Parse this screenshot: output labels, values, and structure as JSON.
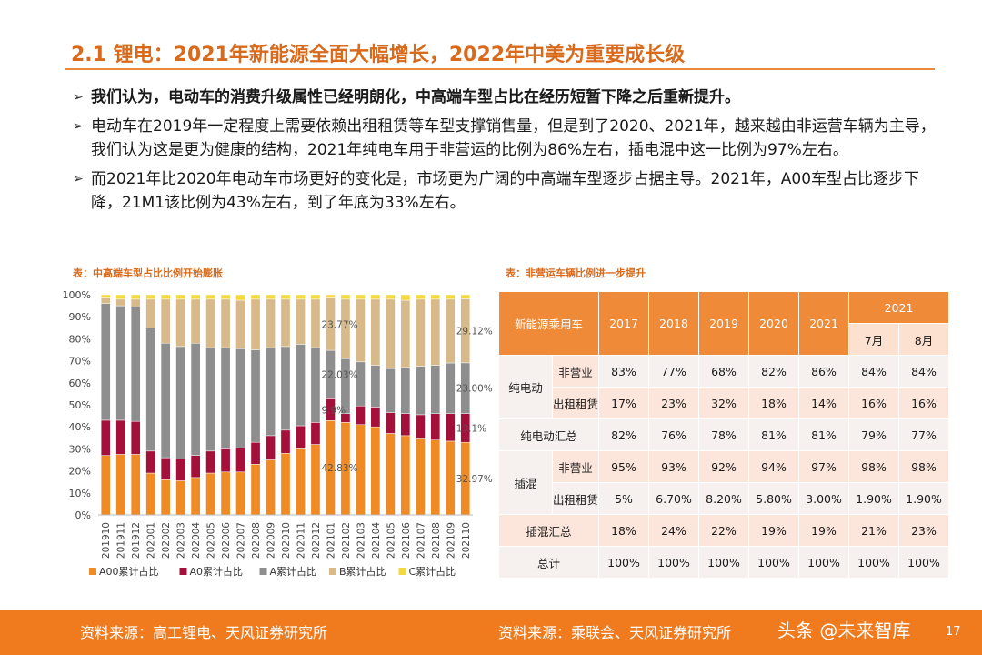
{
  "title": "2.1 锂电：2021年新能源全面大幅增长，2022年中美为重要成长级",
  "bullets": [
    "我们认为，电动车的消费升级属性已经明朗化，中高端车型占比在经历短暂下降之后重新提升。",
    "电动车在2019年一定程度上需要依赖出租租赁等车型支撑销售量，但是到了2020、2021年，越来越由非运营车辆为主导，我们认为这是更为健康的结构，2021年纯电车用于非营运的比例为86%左右，插电混中这一比例为97%左右。",
    "而2021年比2020年电动车市场更好的变化是，市场更为广阔的中高端车型逐步占据主导。2021年，A00车型占比逐步下降，21M1该比例为43%左右，到了年底为33%左右。"
  ],
  "bullet_marker": "➢",
  "chart_caption": "表：中高端车型占比比例开始膨胀",
  "table_caption": "表：非营运车辆比例进一步提升",
  "chart_data": {
    "type": "bar",
    "stacked": true,
    "categories": [
      "201910",
      "201911",
      "201912",
      "202001",
      "202002",
      "202003",
      "202004",
      "202005",
      "202006",
      "202007",
      "202008",
      "202009",
      "202010",
      "202011",
      "202012",
      "202101",
      "202102",
      "202103",
      "202104",
      "202105",
      "202106",
      "202107",
      "202108",
      "202109",
      "202110"
    ],
    "series": [
      {
        "name": "A00累计占比",
        "color": "#f08a24",
        "values": [
          27,
          27.5,
          27.5,
          19,
          16,
          15.5,
          17,
          19,
          19.5,
          19.5,
          23,
          25,
          28,
          30,
          32,
          42.83,
          42,
          41,
          40,
          37,
          36,
          34.5,
          34,
          33.5,
          32.97
        ]
      },
      {
        "name": "A0累计占比",
        "color": "#a5103a",
        "values": [
          16,
          15.5,
          15,
          10,
          10,
          10,
          10,
          10,
          10.5,
          11,
          10,
          11,
          10.5,
          10.5,
          10,
          9.9,
          4,
          8.5,
          9,
          9.5,
          10,
          11,
          12,
          12.5,
          13.1
        ]
      },
      {
        "name": "A累计占比",
        "color": "#8e8e8e",
        "values": [
          53,
          52,
          52,
          56,
          52,
          51,
          51,
          47,
          46,
          45,
          42,
          40,
          38,
          37,
          34,
          22.03,
          25,
          20,
          19,
          20,
          21,
          22,
          22,
          23,
          23.0
        ]
      },
      {
        "name": "B累计占比",
        "color": "#d8b98a",
        "values": [
          2.5,
          3,
          3.5,
          13,
          20,
          21.5,
          20,
          22,
          22,
          22,
          23,
          22,
          21.5,
          20.5,
          22,
          23.77,
          27,
          28.5,
          30,
          31.5,
          30.5,
          30.5,
          30,
          29,
          29.12
        ]
      },
      {
        "name": "C累计占比",
        "color": "#f4d93c",
        "values": [
          1.5,
          2,
          2,
          2,
          2,
          2,
          2,
          2,
          2,
          2.5,
          2,
          2,
          2,
          2,
          2,
          1.47,
          2,
          2,
          2,
          2,
          2.5,
          2,
          2,
          2,
          1.81
        ]
      }
    ],
    "ylim": [
      0,
      100
    ],
    "yticks": [
      "0%",
      "10%",
      "20%",
      "30%",
      "40%",
      "50%",
      "60%",
      "70%",
      "80%",
      "90%",
      "100%"
    ],
    "annotations": [
      {
        "text": "23.77%",
        "series": 3,
        "index": 15
      },
      {
        "text": "22.03%",
        "series": 2,
        "index": 15
      },
      {
        "text": "9.9%",
        "series": 1,
        "index": 15
      },
      {
        "text": "42.83%",
        "series": 0,
        "index": 15
      },
      {
        "text": "29.12%",
        "series": 3,
        "index": 24
      },
      {
        "text": "23.00%",
        "series": 2,
        "index": 24
      },
      {
        "text": "13.1%",
        "series": 1,
        "index": 24
      },
      {
        "text": "32.97%",
        "series": 0,
        "index": 24
      }
    ],
    "legend_position": "bottom"
  },
  "table": {
    "header_label": "新能源乘用车",
    "years": [
      "2017",
      "2018",
      "2019",
      "2020",
      "2021"
    ],
    "year_2021": "2021",
    "months": [
      "7月",
      "8月"
    ],
    "groups": [
      {
        "name": "纯电动",
        "rows": [
          {
            "label": "非营业",
            "values": [
              "83%",
              "77%",
              "68%",
              "82%",
              "86%",
              "84%",
              "84%"
            ]
          },
          {
            "label": "出租租赁",
            "values": [
              "17%",
              "23%",
              "32%",
              "18%",
              "14%",
              "16%",
              "16%"
            ]
          }
        ]
      },
      {
        "summary": "纯电动汇总",
        "values": [
          "82%",
          "76%",
          "78%",
          "81%",
          "81%",
          "79%",
          "77%"
        ]
      },
      {
        "name": "插混",
        "rows": [
          {
            "label": "非营业",
            "values": [
              "95%",
              "93%",
              "92%",
              "94%",
              "97%",
              "98%",
              "98%"
            ]
          },
          {
            "label": "出租租赁",
            "values": [
              "5%",
              "6.70%",
              "8.20%",
              "5.80%",
              "3.00%",
              "1.90%",
              "1.90%"
            ]
          }
        ]
      },
      {
        "summary": "插混汇总",
        "values": [
          "18%",
          "24%",
          "22%",
          "19%",
          "19%",
          "21%",
          "23%"
        ]
      },
      {
        "summary": "总计",
        "values": [
          "100%",
          "100%",
          "100%",
          "100%",
          "100%",
          "100%",
          "100%"
        ]
      }
    ]
  },
  "footer": {
    "source_left": "资料来源：高工锂电、天风证券研究所",
    "source_right": "资料来源：乘联会、天风证券研究所",
    "watermark": "头条 @未来智库",
    "page": "17"
  },
  "colors": {
    "accent": "#f07b1f",
    "title": "#d96a1c",
    "table_header": "#ef8a38"
  }
}
